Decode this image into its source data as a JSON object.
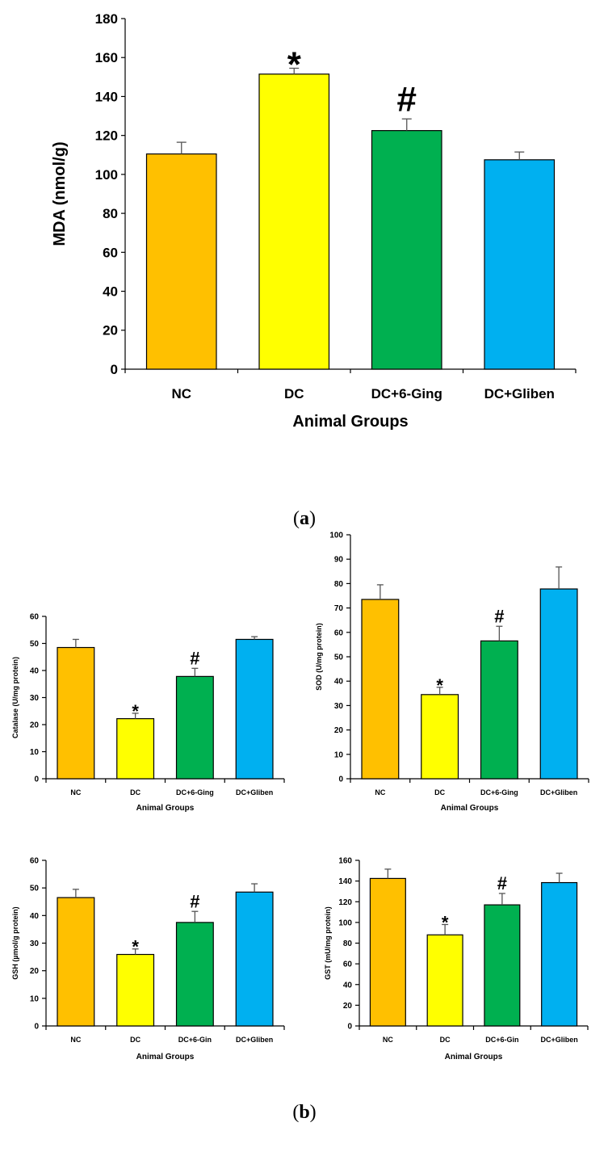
{
  "colors": {
    "NC": "#FFC000",
    "DC": "#FFFF00",
    "DC6": "#00B050",
    "DCG": "#00B0F0"
  },
  "labels": {
    "panel_a_open": "(",
    "panel_a_letter": "a",
    "panel_a_close": ")",
    "panel_b_open": "(",
    "panel_b_letter": "b",
    "panel_b_close": ")"
  },
  "chart_data": [
    {
      "id": "mda",
      "type": "bar",
      "title": "",
      "xlabel": "Animal Groups",
      "ylabel": "MDA (nmol/g)",
      "categories": [
        "NC",
        "DC",
        "DC+6-Ging",
        "DC+Gliben"
      ],
      "values": [
        110.5,
        151.5,
        122.5,
        107.5
      ],
      "errors": [
        6,
        3,
        6,
        4
      ],
      "significance": [
        "",
        "*",
        "#",
        ""
      ],
      "ylim": [
        0,
        180
      ],
      "ytick_step": 20
    },
    {
      "id": "catalase",
      "type": "bar",
      "title": "",
      "xlabel": "Animal Groups",
      "ylabel": "Catalase (U/mg protein)",
      "categories": [
        "NC",
        "DC",
        "DC+6-Ging",
        "DC+Gliben"
      ],
      "values": [
        48.5,
        22.2,
        37.8,
        51.5
      ],
      "errors": [
        3,
        2,
        3,
        1
      ],
      "significance": [
        "",
        "*",
        "#",
        ""
      ],
      "ylim": [
        0,
        60
      ],
      "ytick_step": 10
    },
    {
      "id": "sod",
      "type": "bar",
      "title": "",
      "xlabel": "Animal Groups",
      "ylabel": "SOD (U/mg protein)",
      "categories": [
        "NC",
        "DC",
        "DC+6-Ging",
        "DC+Gliben"
      ],
      "values": [
        73.5,
        34.5,
        56.5,
        77.8
      ],
      "errors": [
        6,
        3,
        6,
        9
      ],
      "significance": [
        "",
        "*",
        "#",
        ""
      ],
      "ylim": [
        0,
        100
      ],
      "ytick_step": 10
    },
    {
      "id": "gsh",
      "type": "bar",
      "title": "",
      "xlabel": "Animal Groups",
      "ylabel": "GSH (µmol/g protein)",
      "categories": [
        "NC",
        "DC",
        "DC+6-Gin",
        "DC+Gliben"
      ],
      "values": [
        46.5,
        25.9,
        37.5,
        48.5
      ],
      "errors": [
        3,
        2,
        4,
        3
      ],
      "significance": [
        "",
        "*",
        "#",
        ""
      ],
      "ylim": [
        0,
        60
      ],
      "ytick_step": 10
    },
    {
      "id": "gst",
      "type": "bar",
      "title": "",
      "xlabel": "Animal Groups",
      "ylabel": "GST (mU/mg protein)",
      "categories": [
        "NC",
        "DC",
        "DC+6-Gin",
        "DC+Gliben"
      ],
      "values": [
        142.5,
        88.0,
        117.0,
        138.5
      ],
      "errors": [
        9,
        10,
        11,
        9
      ],
      "significance": [
        "",
        "*",
        "#",
        ""
      ],
      "ylim": [
        0,
        160
      ],
      "ytick_step": 20
    }
  ]
}
